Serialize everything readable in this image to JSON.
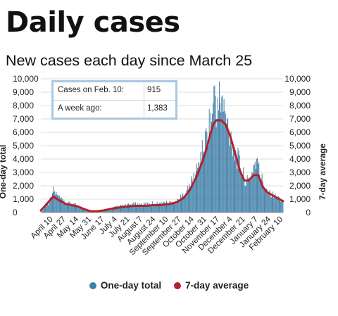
{
  "header": {
    "title": "Daily cases",
    "subtitle": "New cases each day since March 25"
  },
  "info_box": {
    "rows": [
      {
        "label": "Cases on Feb. 10:",
        "value": "915"
      },
      {
        "label": "A week ago:",
        "value": "1,383"
      }
    ]
  },
  "legend": {
    "items": [
      {
        "label": "One-day total",
        "color": "#3f7ea8"
      },
      {
        "label": "7-day average",
        "color": "#b2222a"
      }
    ]
  },
  "chart_data": {
    "type": "bar",
    "title": "Daily cases",
    "subtitle": "New cases each day since March 25",
    "ylabel_left": "One-day total",
    "ylabel_right": "7-day average",
    "ylim": [
      0,
      10000
    ],
    "yticks": [
      0,
      1000,
      2000,
      3000,
      4000,
      5000,
      6000,
      7000,
      8000,
      9000,
      10000
    ],
    "ytick_labels": [
      "0",
      "1,000",
      "2,000",
      "3,000",
      "4,000",
      "5,000",
      "6,000",
      "7,000",
      "8,000",
      "9,000",
      "10,000"
    ],
    "x_start": "March 25",
    "x_end": "February 10",
    "xtick_labels": [
      "April 10",
      "April 27",
      "May 14",
      "May 31",
      "June 17",
      "July 4",
      "July 21",
      "August 7",
      "August 24",
      "September 10",
      "September 27",
      "October 14",
      "October 31",
      "November 17",
      "December 4",
      "December 21",
      "January 7",
      "January 24",
      "February 10"
    ],
    "grid": true,
    "legend_position": "bottom",
    "series": [
      {
        "name": "One-day total",
        "kind": "bar",
        "color": "#3f7ea8",
        "points": [
          [
            0,
            0
          ],
          [
            10,
            700
          ],
          [
            16,
            1650
          ],
          [
            24,
            1100
          ],
          [
            32,
            650
          ],
          [
            40,
            700
          ],
          [
            48,
            550
          ],
          [
            56,
            300
          ],
          [
            64,
            150
          ],
          [
            72,
            120
          ],
          [
            80,
            200
          ],
          [
            88,
            300
          ],
          [
            96,
            400
          ],
          [
            104,
            500
          ],
          [
            112,
            550
          ],
          [
            120,
            650
          ],
          [
            128,
            600
          ],
          [
            136,
            650
          ],
          [
            144,
            700
          ],
          [
            152,
            650
          ],
          [
            160,
            750
          ],
          [
            168,
            750
          ],
          [
            176,
            900
          ],
          [
            184,
            1300
          ],
          [
            192,
            2000
          ],
          [
            200,
            3000
          ],
          [
            208,
            4500
          ],
          [
            214,
            5800
          ],
          [
            218,
            6900
          ],
          [
            222,
            7500
          ],
          [
            224,
            9600
          ],
          [
            227,
            7000
          ],
          [
            230,
            8500
          ],
          [
            234,
            8200
          ],
          [
            238,
            7000
          ],
          [
            242,
            6200
          ],
          [
            246,
            5500
          ],
          [
            250,
            4400
          ],
          [
            254,
            4000
          ],
          [
            258,
            3400
          ],
          [
            262,
            2600
          ],
          [
            266,
            2300
          ],
          [
            270,
            2500
          ],
          [
            274,
            3500
          ],
          [
            278,
            3900
          ],
          [
            282,
            3000
          ],
          [
            288,
            2000
          ],
          [
            294,
            1600
          ],
          [
            300,
            1300
          ],
          [
            306,
            1100
          ],
          [
            312,
            915
          ]
        ]
      },
      {
        "name": "7-day average",
        "kind": "line",
        "color": "#b2222a",
        "points": [
          [
            0,
            150
          ],
          [
            10,
            800
          ],
          [
            16,
            1200
          ],
          [
            24,
            900
          ],
          [
            32,
            650
          ],
          [
            40,
            550
          ],
          [
            48,
            450
          ],
          [
            56,
            250
          ],
          [
            64,
            100
          ],
          [
            72,
            100
          ],
          [
            80,
            150
          ],
          [
            88,
            250
          ],
          [
            96,
            330
          ],
          [
            104,
            400
          ],
          [
            112,
            450
          ],
          [
            120,
            500
          ],
          [
            128,
            500
          ],
          [
            136,
            500
          ],
          [
            144,
            550
          ],
          [
            152,
            550
          ],
          [
            160,
            600
          ],
          [
            168,
            650
          ],
          [
            176,
            800
          ],
          [
            184,
            1100
          ],
          [
            192,
            1700
          ],
          [
            200,
            2600
          ],
          [
            208,
            3800
          ],
          [
            214,
            4900
          ],
          [
            218,
            5800
          ],
          [
            222,
            6600
          ],
          [
            226,
            6900
          ],
          [
            232,
            6900
          ],
          [
            238,
            6600
          ],
          [
            244,
            5700
          ],
          [
            250,
            4500
          ],
          [
            256,
            3200
          ],
          [
            262,
            2400
          ],
          [
            268,
            2400
          ],
          [
            274,
            2800
          ],
          [
            280,
            2800
          ],
          [
            286,
            1900
          ],
          [
            292,
            1500
          ],
          [
            298,
            1300
          ],
          [
            304,
            1100
          ],
          [
            312,
            850
          ]
        ]
      }
    ]
  }
}
